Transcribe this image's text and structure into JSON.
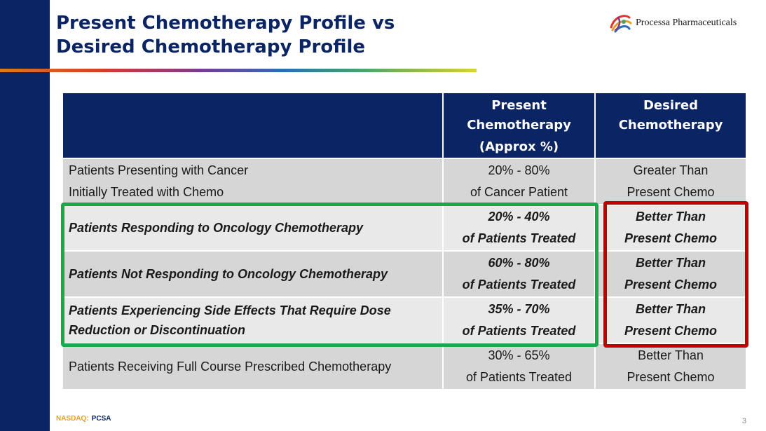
{
  "slide": {
    "title_line1": "Present Chemotherapy Profile vs",
    "title_line2": "Desired Chemotherapy Profile",
    "page_number": "3"
  },
  "logo": {
    "name": "Processa Pharmaceuticals",
    "icon": "processa-swirl-logo-icon"
  },
  "footer": {
    "exchange": "NASDAQ:",
    "ticker": "PCSA"
  },
  "colors": {
    "navy": "#0b2464",
    "green_highlight": "#1aa84a",
    "red_highlight": "#c00000",
    "row_dark": "#d6d6d6",
    "row_light": "#e9e9e9"
  },
  "table": {
    "header": {
      "category": "",
      "present": [
        "Present",
        "Chemotherapy",
        "(Approx %)"
      ],
      "desired": [
        "Desired",
        "Chemotherapy"
      ]
    },
    "rows": [
      {
        "category": [
          "Patients Presenting with Cancer",
          "Initially Treated with Chemo"
        ],
        "present": [
          "20% - 80%",
          "of Cancer Patient"
        ],
        "desired": [
          "Greater Than",
          "Present Chemo"
        ]
      },
      {
        "category": [
          "Patients Responding to Oncology Chemotherapy"
        ],
        "present": [
          "20% - 40%",
          "of Patients Treated"
        ],
        "desired": [
          "Better Than",
          "Present Chemo"
        ]
      },
      {
        "category": [
          "Patients Not Responding to Oncology Chemotherapy"
        ],
        "present": [
          "60% - 80%",
          "of Patients Treated"
        ],
        "desired": [
          "Better Than",
          "Present Chemo"
        ]
      },
      {
        "category": [
          "Patients Experiencing Side Effects That Require Dose",
          "Reduction or Discontinuation"
        ],
        "present": [
          "35% - 70%",
          "of Patients Treated"
        ],
        "desired": [
          "Better Than",
          "Present Chemo"
        ]
      },
      {
        "category": [
          "Patients Receiving Full Course Prescribed Chemotherapy"
        ],
        "present": [
          "30% - 65%",
          "of Patients Treated"
        ],
        "desired": [
          "Better Than",
          "Present Chemo"
        ]
      }
    ]
  }
}
